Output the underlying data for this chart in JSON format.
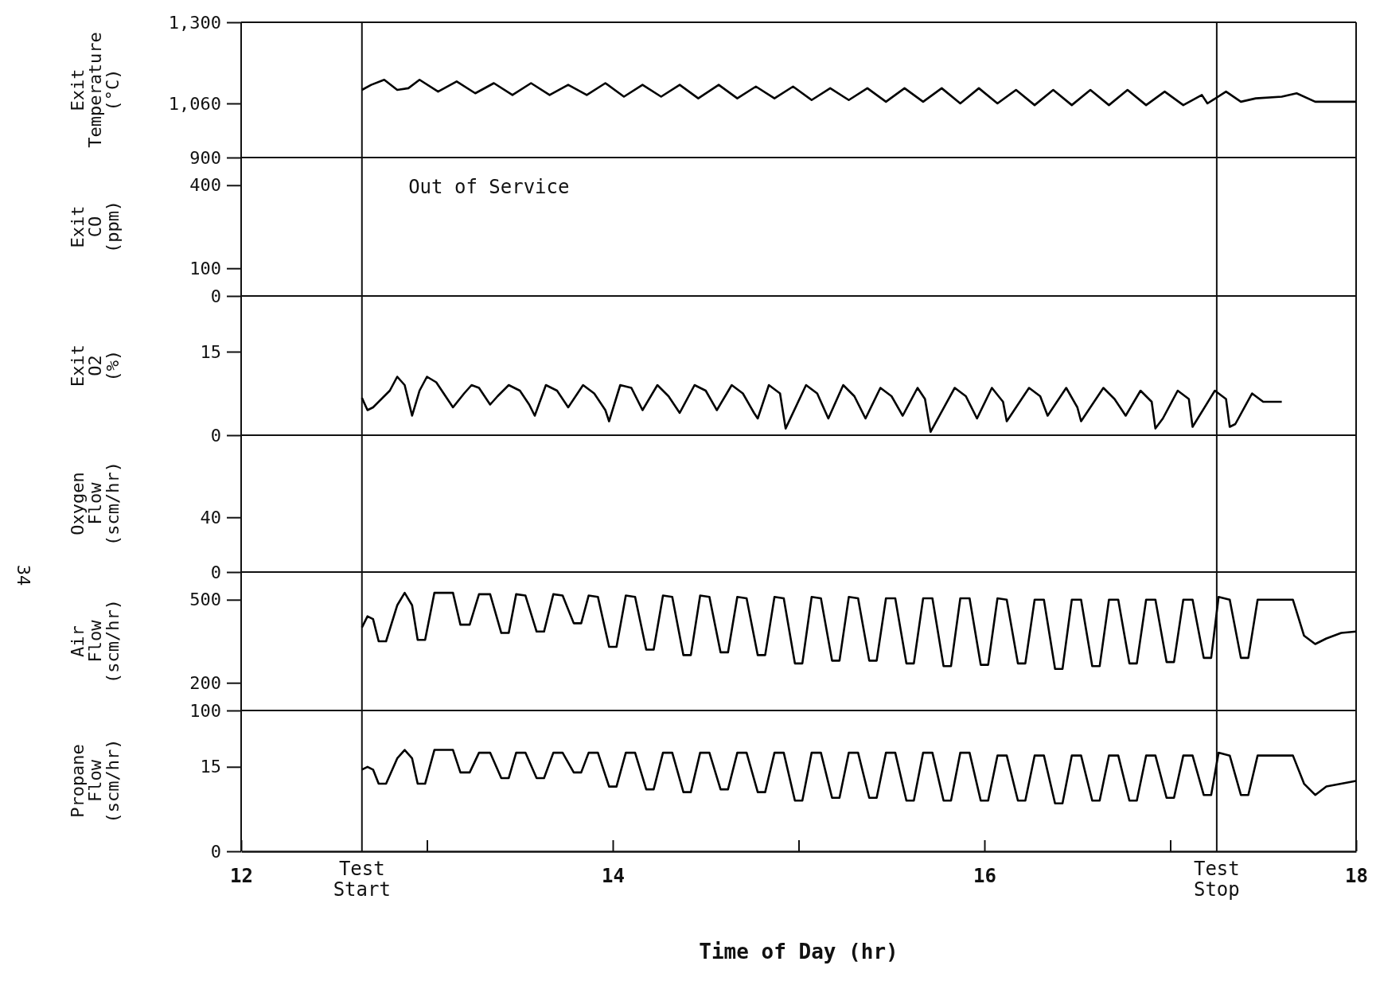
{
  "chart_data": [
    {
      "type": "line",
      "ylabel": "Exit Temperature (°C)",
      "xlim": [
        12,
        18
      ],
      "ylim": [
        900,
        1300
      ],
      "yticks": [
        900,
        {
          "value": 1060,
          "label": "1,060"
        },
        {
          "value": 1300,
          "label": "1,300"
        }
      ],
      "tick_labels": "y",
      "grid": false,
      "marker": "none",
      "line_style": "solid",
      "ref_lines": [
        {
          "axis": "x",
          "value": 12.65
        },
        {
          "axis": "x",
          "value": 17.25
        }
      ],
      "series": [
        {
          "color": "#000000",
          "x": [
            12.65,
            12.7,
            12.77,
            12.84,
            12.9,
            12.96,
            13.06,
            13.16,
            13.26,
            13.36,
            13.46,
            13.56,
            13.66,
            13.76,
            13.86,
            13.96,
            14.06,
            14.16,
            14.26,
            14.36,
            14.46,
            14.57,
            14.67,
            14.77,
            14.87,
            14.97,
            15.07,
            15.17,
            15.27,
            15.37,
            15.47,
            15.57,
            15.67,
            15.77,
            15.87,
            15.97,
            16.07,
            16.17,
            16.27,
            16.37,
            16.47,
            16.57,
            16.67,
            16.77,
            16.87,
            16.97,
            17.07,
            17.17,
            17.2,
            17.3,
            17.38,
            17.46,
            17.6,
            17.68,
            17.78,
            18
          ],
          "values": [
            1100,
            1115,
            1130,
            1100,
            1105,
            1130,
            1095,
            1125,
            1090,
            1120,
            1085,
            1120,
            1085,
            1115,
            1085,
            1120,
            1080,
            1115,
            1080,
            1115,
            1075,
            1115,
            1075,
            1110,
            1075,
            1110,
            1070,
            1105,
            1070,
            1105,
            1065,
            1105,
            1065,
            1105,
            1060,
            1105,
            1060,
            1100,
            1055,
            1100,
            1055,
            1100,
            1055,
            1100,
            1055,
            1095,
            1055,
            1085,
            1060,
            1095,
            1065,
            1075,
            1080,
            1090,
            1065,
            1065
          ]
        }
      ]
    },
    {
      "type": "line",
      "ylabel": "Exit CO (ppm)",
      "xlim": [
        12,
        18
      ],
      "ylim": [
        0,
        500
      ],
      "yticks": [
        0,
        100,
        400
      ],
      "tick_labels": "y",
      "grid": false,
      "ref_lines": [
        {
          "axis": "x",
          "value": 12.65
        },
        {
          "axis": "x",
          "value": 17.25
        }
      ],
      "annotations": [
        "Out of Service"
      ]
    },
    {
      "type": "line",
      "ylabel": "Exit O2 (%)",
      "xlim": [
        12,
        18
      ],
      "ylim": [
        0,
        25
      ],
      "yticks": [
        0,
        15
      ],
      "tick_labels": "y",
      "grid": false,
      "marker": "none",
      "line_style": "solid",
      "ref_lines": [
        {
          "axis": "x",
          "value": 12.65
        },
        {
          "axis": "x",
          "value": 17.25
        }
      ],
      "series": [
        {
          "color": "#000000",
          "x": [
            12.65,
            12.68,
            12.71,
            12.8,
            12.84,
            12.88,
            12.92,
            12.96,
            13.0,
            13.05,
            13.1,
            13.14,
            13.2,
            13.24,
            13.28,
            13.34,
            13.38,
            13.44,
            13.5,
            13.55,
            13.58,
            13.64,
            13.7,
            13.76,
            13.84,
            13.9,
            13.96,
            13.98,
            14.04,
            14.1,
            14.16,
            14.24,
            14.3,
            14.36,
            14.44,
            14.5,
            14.56,
            14.64,
            14.7,
            14.76,
            14.78,
            14.84,
            14.9,
            14.93,
            15.04,
            15.1,
            15.16,
            15.24,
            15.3,
            15.36,
            15.44,
            15.5,
            15.56,
            15.64,
            15.68,
            15.71,
            15.84,
            15.9,
            15.96,
            16.04,
            16.1,
            16.12,
            16.24,
            16.3,
            16.34,
            16.44,
            16.5,
            16.52,
            16.64,
            16.7,
            16.76,
            16.84,
            16.9,
            16.92,
            16.96,
            17.04,
            17.1,
            17.12,
            17.24,
            17.3,
            17.32,
            17.35,
            17.44,
            17.5,
            17.6
          ],
          "values": [
            6.7,
            4.5,
            5,
            8,
            10.5,
            9,
            3.5,
            8,
            10.5,
            9.5,
            7,
            5,
            7.5,
            9,
            8.5,
            5.5,
            7,
            9,
            8,
            5.5,
            3.5,
            9,
            8,
            5,
            9,
            7.5,
            4.5,
            2.5,
            9,
            8.5,
            4.5,
            9,
            7,
            4,
            9,
            8,
            4.5,
            9,
            7.5,
            4,
            3,
            9,
            7.5,
            1.2,
            9,
            7.5,
            3,
            9,
            7,
            3,
            8.5,
            7,
            3.5,
            8.5,
            6.5,
            0.6,
            8.5,
            7,
            3,
            8.5,
            6,
            2.5,
            8.5,
            7,
            3.5,
            8.5,
            5,
            2.5,
            8.5,
            6.5,
            3.5,
            8,
            6,
            1.2,
            3,
            8,
            6.5,
            1.5,
            8,
            6.5,
            1.5,
            2,
            7.5,
            6,
            6
          ]
        }
      ]
    },
    {
      "type": "line",
      "ylabel": "Oxygen Flow (scm/hr)",
      "xlim": [
        12,
        18
      ],
      "ylim": [
        0,
        100
      ],
      "yticks": [
        0,
        40
      ],
      "tick_labels": "y",
      "grid": false,
      "ref_lines": [
        {
          "axis": "x",
          "value": 12.65
        },
        {
          "axis": "x",
          "value": 17.25
        }
      ],
      "annotations": [
        "34"
      ]
    },
    {
      "type": "line",
      "ylabel": "Air Flow (scm/hr)",
      "xlim": [
        12,
        18
      ],
      "ylim": [
        100,
        600
      ],
      "yticks": [
        100,
        200,
        500
      ],
      "tick_labels": "y",
      "grid": false,
      "marker": "none",
      "line_style": "solid",
      "ref_lines": [
        {
          "axis": "x",
          "value": 12.65
        },
        {
          "axis": "x",
          "value": 17.25
        }
      ],
      "series": [
        {
          "color": "#000000",
          "x": [
            12.65,
            12.68,
            12.71,
            12.74,
            12.78,
            12.84,
            12.88,
            12.92,
            12.95,
            12.99,
            13.04,
            13.14,
            13.18,
            13.23,
            13.28,
            13.34,
            13.4,
            13.44,
            13.48,
            13.53,
            13.59,
            13.63,
            13.68,
            13.73,
            13.79,
            13.83,
            13.87,
            13.92,
            13.98,
            14.02,
            14.07,
            14.12,
            14.18,
            14.22,
            14.27,
            14.32,
            14.38,
            14.42,
            14.47,
            14.52,
            14.58,
            14.62,
            14.67,
            14.72,
            14.78,
            14.82,
            14.87,
            14.92,
            14.98,
            15.02,
            15.07,
            15.12,
            15.18,
            15.22,
            15.27,
            15.32,
            15.38,
            15.42,
            15.47,
            15.52,
            15.58,
            15.62,
            15.67,
            15.72,
            15.78,
            15.82,
            15.87,
            15.92,
            15.98,
            16.02,
            16.07,
            16.12,
            16.18,
            16.22,
            16.27,
            16.32,
            16.38,
            16.42,
            16.47,
            16.52,
            16.58,
            16.62,
            16.67,
            16.72,
            16.78,
            16.82,
            16.87,
            16.92,
            16.98,
            17.02,
            17.07,
            17.12,
            17.18,
            17.22,
            17.26,
            17.32,
            17.38,
            17.42,
            17.47,
            17.66,
            17.72,
            17.78,
            17.84,
            17.92,
            18.0
          ],
          "values": [
            400,
            440,
            430,
            350,
            350,
            480,
            525,
            480,
            355,
            355,
            525,
            525,
            410,
            410,
            520,
            520,
            380,
            380,
            520,
            515,
            385,
            385,
            520,
            515,
            415,
            415,
            515,
            510,
            330,
            330,
            515,
            510,
            320,
            320,
            515,
            510,
            300,
            300,
            515,
            510,
            310,
            310,
            510,
            505,
            300,
            300,
            510,
            505,
            270,
            270,
            510,
            505,
            280,
            280,
            510,
            505,
            280,
            280,
            505,
            505,
            270,
            270,
            505,
            505,
            260,
            260,
            505,
            505,
            265,
            265,
            505,
            500,
            270,
            270,
            500,
            500,
            250,
            250,
            500,
            500,
            260,
            260,
            500,
            500,
            270,
            270,
            500,
            500,
            275,
            275,
            500,
            500,
            290,
            290,
            510,
            500,
            290,
            290,
            500,
            500,
            370,
            340,
            360,
            380,
            385
          ]
        }
      ]
    },
    {
      "type": "line",
      "ylabel": "Propane Flow (scm/hr)",
      "xlabel": "Time of Day (hr)",
      "xlim": [
        12,
        18
      ],
      "ylim": [
        0,
        25
      ],
      "yticks": [
        0,
        15
      ],
      "xticks": [
        12,
        {
          "value": 13,
          "label": null
        },
        14,
        {
          "value": 15,
          "label": null
        },
        16,
        {
          "value": 17,
          "label": null
        },
        18
      ],
      "grid": false,
      "marker": "none",
      "line_style": "solid",
      "ref_lines": [
        {
          "axis": "x",
          "value": 12.65,
          "label": "Test Start"
        },
        {
          "axis": "x",
          "value": 17.25,
          "label": "Test Stop"
        }
      ],
      "series": [
        {
          "color": "#000000",
          "x": [
            12.65,
            12.68,
            12.71,
            12.74,
            12.78,
            12.84,
            12.88,
            12.92,
            12.95,
            12.99,
            13.04,
            13.14,
            13.18,
            13.23,
            13.28,
            13.34,
            13.4,
            13.44,
            13.48,
            13.53,
            13.59,
            13.63,
            13.68,
            13.73,
            13.79,
            13.83,
            13.87,
            13.92,
            13.98,
            14.02,
            14.07,
            14.12,
            14.18,
            14.22,
            14.27,
            14.32,
            14.38,
            14.42,
            14.47,
            14.52,
            14.58,
            14.62,
            14.67,
            14.72,
            14.78,
            14.82,
            14.87,
            14.92,
            14.98,
            15.02,
            15.07,
            15.12,
            15.18,
            15.22,
            15.27,
            15.32,
            15.38,
            15.42,
            15.47,
            15.52,
            15.58,
            15.62,
            15.67,
            15.72,
            15.78,
            15.82,
            15.87,
            15.92,
            15.98,
            16.02,
            16.07,
            16.12,
            16.18,
            16.22,
            16.27,
            16.32,
            16.38,
            16.42,
            16.47,
            16.52,
            16.58,
            16.62,
            16.67,
            16.72,
            16.78,
            16.82,
            16.87,
            16.92,
            16.98,
            17.02,
            17.07,
            17.12,
            17.18,
            17.22,
            17.26,
            17.32,
            17.38,
            17.42,
            17.47,
            17.66,
            17.72,
            17.78,
            17.84,
            17.92,
            18.0
          ],
          "values": [
            14.5,
            15,
            14.5,
            12,
            12,
            16.5,
            18,
            16.5,
            12,
            12,
            18,
            18,
            14,
            14,
            17.5,
            17.5,
            13,
            13,
            17.5,
            17.5,
            13,
            13,
            17.5,
            17.5,
            14,
            14,
            17.5,
            17.5,
            11.5,
            11.5,
            17.5,
            17.5,
            11,
            11,
            17.5,
            17.5,
            10.5,
            10.5,
            17.5,
            17.5,
            11,
            11,
            17.5,
            17.5,
            10.5,
            10.5,
            17.5,
            17.5,
            9,
            9,
            17.5,
            17.5,
            9.5,
            9.5,
            17.5,
            17.5,
            9.5,
            9.5,
            17.5,
            17.5,
            9,
            9,
            17.5,
            17.5,
            9,
            9,
            17.5,
            17.5,
            9,
            9,
            17,
            17,
            9,
            9,
            17,
            17,
            8.5,
            8.5,
            17,
            17,
            9,
            9,
            17,
            17,
            9,
            9,
            17,
            17,
            9.5,
            9.5,
            17,
            17,
            10,
            10,
            17.5,
            17,
            10,
            10,
            17,
            17,
            12,
            10,
            11.5,
            12,
            12.5
          ]
        }
      ]
    }
  ]
}
